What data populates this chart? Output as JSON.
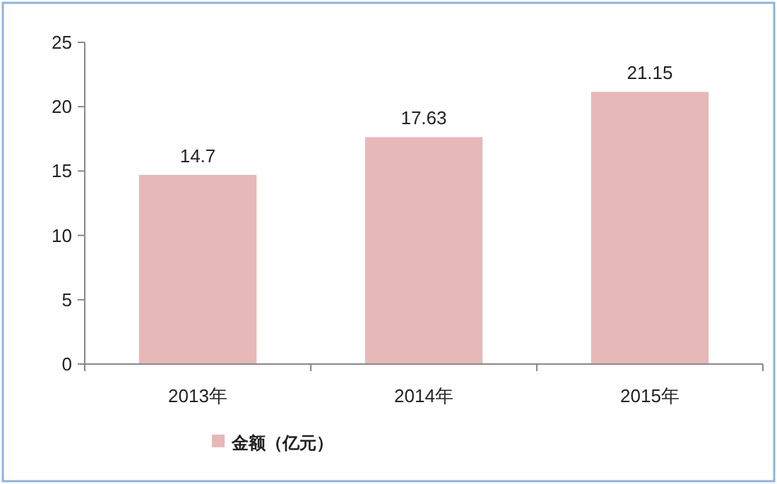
{
  "chart_data": {
    "type": "bar",
    "categories": [
      "2013年",
      "2014年",
      "2015年"
    ],
    "series": [
      {
        "name": "金额（亿元）",
        "color": "#e6b9b8",
        "values": [
          14.7,
          17.63,
          21.15
        ]
      }
    ],
    "ylim": [
      0,
      25
    ],
    "yticks": [
      0,
      5,
      10,
      15,
      20,
      25
    ],
    "data_labels": true,
    "grid": false,
    "legend": "bottom"
  }
}
